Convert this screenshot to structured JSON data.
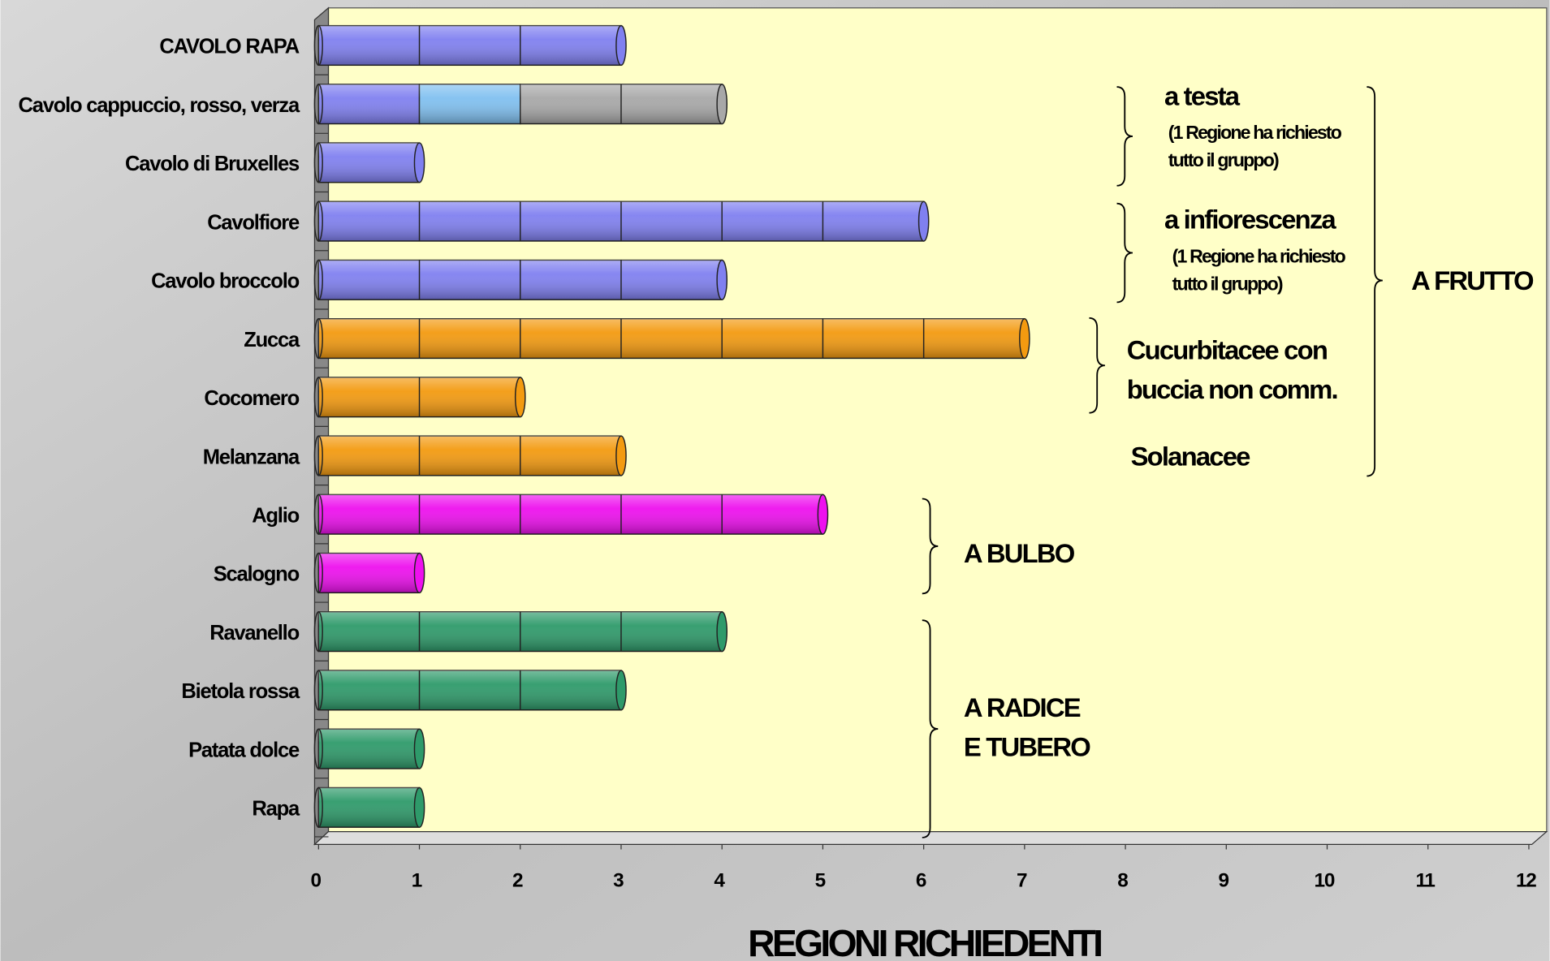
{
  "chart_data": {
    "type": "bar",
    "orientation": "horizontal",
    "x_label": "REGIONI RICHIEDENTI",
    "categories": [
      "CAVOLO RAPA",
      "Cavolo cappuccio, rosso, verza",
      "Cavolo di Bruxelles",
      "Cavolfiore",
      "Cavolo broccolo",
      "Zucca",
      "Cocomero",
      "Melanzana",
      "Aglio",
      "Scalogno",
      "Ravanello",
      "Bietola rossa",
      "Patata dolce",
      "Rapa"
    ],
    "segments": [
      [
        {
          "value": 3,
          "color": "#8080f0"
        }
      ],
      [
        {
          "value": 1,
          "color": "#8080f0"
        },
        {
          "value": 1,
          "color": "#80c0f0"
        },
        {
          "value": 2,
          "color": "#a8a8a8"
        }
      ],
      [
        {
          "value": 1,
          "color": "#8080f0"
        }
      ],
      [
        {
          "value": 6,
          "color": "#8080f0"
        }
      ],
      [
        {
          "value": 4,
          "color": "#8080f0"
        }
      ],
      [
        {
          "value": 7,
          "color": "#f39a10"
        }
      ],
      [
        {
          "value": 2,
          "color": "#f39a10"
        }
      ],
      [
        {
          "value": 3,
          "color": "#f39a10"
        }
      ],
      [
        {
          "value": 5,
          "color": "#ee10ee"
        }
      ],
      [
        {
          "value": 1,
          "color": "#ee10ee"
        }
      ],
      [
        {
          "value": 4,
          "color": "#2e9a6a"
        }
      ],
      [
        {
          "value": 3,
          "color": "#2e9a6a"
        }
      ],
      [
        {
          "value": 1,
          "color": "#2e9a6a"
        }
      ],
      [
        {
          "value": 1,
          "color": "#2e9a6a"
        }
      ]
    ],
    "xlim": [
      0,
      12
    ],
    "xticks": [
      0,
      1,
      2,
      3,
      4,
      5,
      6,
      7,
      8,
      9,
      10,
      11,
      12
    ],
    "annotations": [
      "a testa",
      "(1 Regione ha richiesto",
      "tutto il gruppo)",
      "a infiorescenza",
      "(1 Regione ha richiesto",
      "tutto il gruppo)",
      "Cucurbitacee  con",
      "buccia non comm.",
      "Solanacee",
      "A FRUTTO",
      "A BULBO",
      "A RADICE",
      "E TUBERO"
    ]
  }
}
